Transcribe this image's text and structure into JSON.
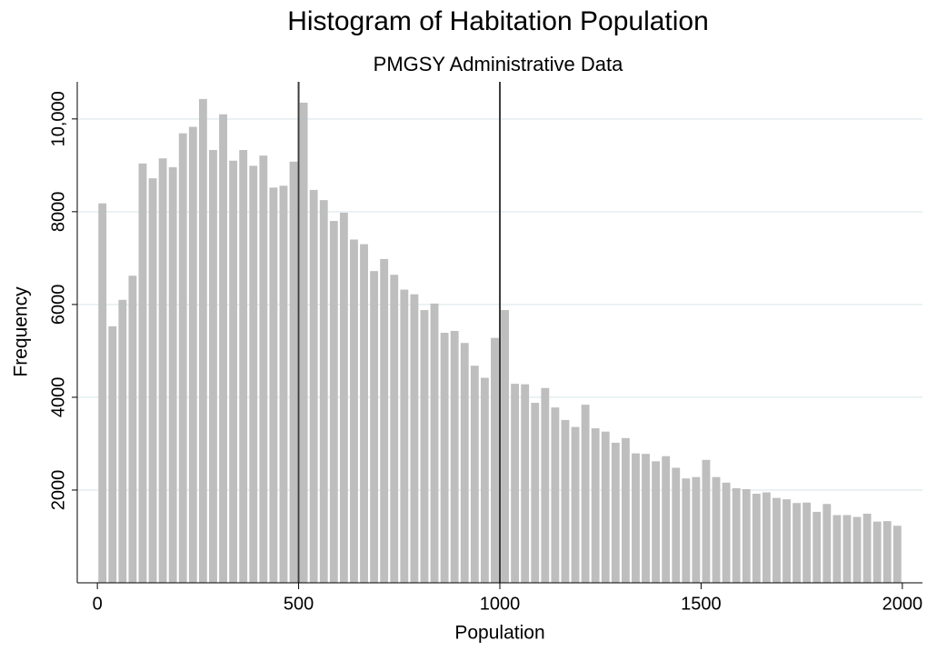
{
  "chart_data": {
    "type": "histogram",
    "title": "Histogram of Habitation Population",
    "subtitle": "PMGSY Administrative Data",
    "x_label": "Population",
    "y_label": "Frequency",
    "bins": [
      0,
      25,
      50,
      75,
      100,
      125,
      150,
      175,
      200,
      225,
      250,
      275,
      300,
      325,
      350,
      375,
      400,
      425,
      450,
      475,
      500,
      525,
      550,
      575,
      600,
      625,
      650,
      675,
      700,
      725,
      750,
      775,
      800,
      825,
      850,
      875,
      900,
      925,
      950,
      975,
      1000,
      1025,
      1050,
      1075,
      1100,
      1125,
      1150,
      1175,
      1200,
      1225,
      1250,
      1275,
      1300,
      1325,
      1350,
      1375,
      1400,
      1425,
      1450,
      1475,
      1500,
      1525,
      1550,
      1575,
      1600,
      1625,
      1650,
      1675,
      1700,
      1725,
      1750,
      1775,
      1800,
      1825,
      1850,
      1875,
      1900,
      1925,
      1950,
      1975,
      2000
    ],
    "values": [
      8180,
      5530,
      6100,
      6620,
      9040,
      8720,
      9150,
      8960,
      9690,
      9830,
      10430,
      9330,
      10100,
      9100,
      9330,
      8990,
      9210,
      8520,
      8560,
      9080,
      10350,
      8470,
      8250,
      7800,
      7980,
      7400,
      7300,
      6720,
      6980,
      6640,
      6320,
      6220,
      5880,
      6020,
      5390,
      5430,
      5170,
      4680,
      4420,
      5280,
      5880,
      4290,
      4280,
      3880,
      4200,
      3780,
      3510,
      3360,
      3840,
      3330,
      3260,
      3020,
      3120,
      2790,
      2780,
      2620,
      2730,
      2480,
      2250,
      2280,
      2650,
      2280,
      2160,
      2040,
      2020,
      1920,
      1950,
      1830,
      1800,
      1720,
      1730,
      1530,
      1700,
      1460,
      1460,
      1420,
      1490,
      1320,
      1330,
      1230
    ],
    "color": "#bebebe",
    "xlim": [
      -50,
      2050
    ],
    "xticks": [
      0,
      500,
      1000,
      1500,
      2000
    ],
    "ylim": [
      0,
      10800
    ],
    "yticks": [
      2000,
      4000,
      6000,
      8000,
      {
        "value": 10000,
        "label": "10,000"
      }
    ],
    "xlines": [
      500,
      1000
    ],
    "xline_color": "#3c3c3c",
    "grid": true,
    "grid_color": "#e4eef0",
    "title_color": "#1a2d5a"
  }
}
